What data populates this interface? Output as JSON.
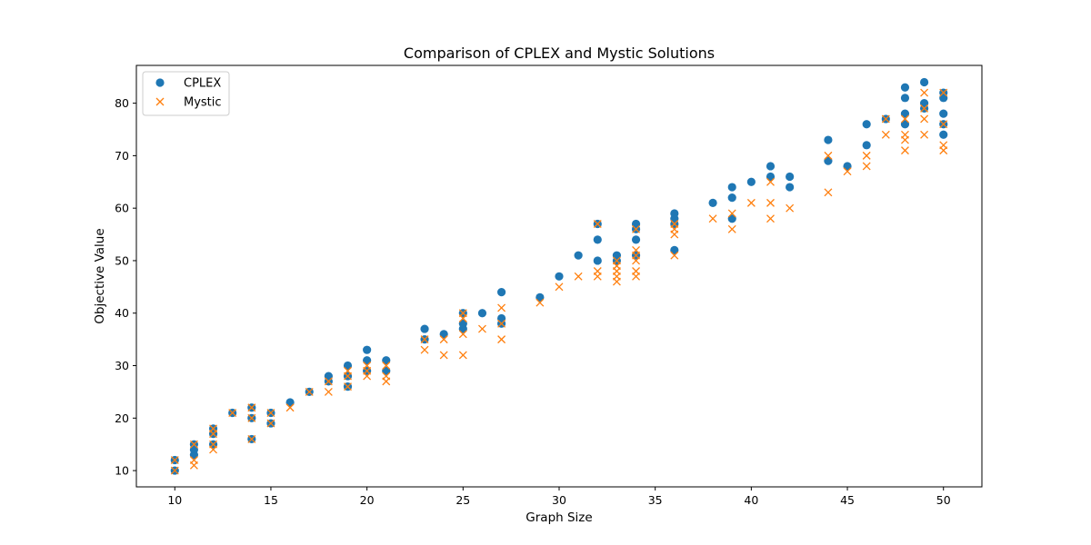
{
  "chart_data": {
    "type": "scatter",
    "title": "Comparison of CPLEX and Mystic Solutions",
    "xlabel": "Graph Size",
    "ylabel": "Objective Value",
    "xlim": [
      8.0,
      52.0
    ],
    "ylim": [
      6.9,
      87.2
    ],
    "xticks": [
      10,
      15,
      20,
      25,
      30,
      35,
      40,
      45,
      50
    ],
    "yticks": [
      10,
      20,
      30,
      40,
      50,
      60,
      70,
      80
    ],
    "grid": false,
    "legend_position": "top-left",
    "series": [
      {
        "name": "CPLEX",
        "marker": "circle",
        "color": "#1f77b4",
        "points": [
          [
            10,
            10
          ],
          [
            10,
            12
          ],
          [
            11,
            13
          ],
          [
            11,
            14
          ],
          [
            11,
            15
          ],
          [
            12,
            15
          ],
          [
            12,
            17
          ],
          [
            12,
            18
          ],
          [
            13,
            21
          ],
          [
            14,
            16
          ],
          [
            14,
            20
          ],
          [
            14,
            22
          ],
          [
            15,
            19
          ],
          [
            15,
            21
          ],
          [
            16,
            23
          ],
          [
            17,
            25
          ],
          [
            18,
            27
          ],
          [
            18,
            28
          ],
          [
            19,
            26
          ],
          [
            19,
            28
          ],
          [
            19,
            30
          ],
          [
            20,
            29
          ],
          [
            20,
            31
          ],
          [
            20,
            33
          ],
          [
            21,
            29
          ],
          [
            21,
            31
          ],
          [
            23,
            35
          ],
          [
            23,
            37
          ],
          [
            24,
            36
          ],
          [
            25,
            37
          ],
          [
            25,
            38
          ],
          [
            25,
            40
          ],
          [
            26,
            40
          ],
          [
            27,
            38
          ],
          [
            27,
            39
          ],
          [
            27,
            44
          ],
          [
            29,
            43
          ],
          [
            30,
            47
          ],
          [
            31,
            51
          ],
          [
            32,
            50
          ],
          [
            32,
            54
          ],
          [
            32,
            57
          ],
          [
            33,
            50
          ],
          [
            33,
            51
          ],
          [
            34,
            51
          ],
          [
            34,
            54
          ],
          [
            34,
            56
          ],
          [
            34,
            57
          ],
          [
            36,
            52
          ],
          [
            36,
            57
          ],
          [
            36,
            58
          ],
          [
            36,
            59
          ],
          [
            38,
            61
          ],
          [
            39,
            58
          ],
          [
            39,
            62
          ],
          [
            39,
            64
          ],
          [
            40,
            65
          ],
          [
            41,
            66
          ],
          [
            41,
            68
          ],
          [
            42,
            64
          ],
          [
            42,
            66
          ],
          [
            44,
            69
          ],
          [
            44,
            73
          ],
          [
            45,
            68
          ],
          [
            46,
            72
          ],
          [
            46,
            76
          ],
          [
            47,
            77
          ],
          [
            48,
            76
          ],
          [
            48,
            78
          ],
          [
            48,
            81
          ],
          [
            48,
            83
          ],
          [
            49,
            79
          ],
          [
            49,
            80
          ],
          [
            49,
            84
          ],
          [
            50,
            74
          ],
          [
            50,
            76
          ],
          [
            50,
            78
          ],
          [
            50,
            81
          ],
          [
            50,
            82
          ]
        ]
      },
      {
        "name": "Mystic",
        "marker": "x",
        "color": "#ff7f0e",
        "points": [
          [
            10,
            10
          ],
          [
            10,
            12
          ],
          [
            11,
            11
          ],
          [
            11,
            12
          ],
          [
            11,
            15
          ],
          [
            12,
            14
          ],
          [
            12,
            15
          ],
          [
            12,
            17
          ],
          [
            12,
            18
          ],
          [
            13,
            21
          ],
          [
            14,
            16
          ],
          [
            14,
            20
          ],
          [
            14,
            22
          ],
          [
            15,
            19
          ],
          [
            15,
            21
          ],
          [
            16,
            22
          ],
          [
            17,
            25
          ],
          [
            18,
            25
          ],
          [
            18,
            27
          ],
          [
            19,
            26
          ],
          [
            19,
            28
          ],
          [
            19,
            29
          ],
          [
            20,
            28
          ],
          [
            20,
            29
          ],
          [
            20,
            30
          ],
          [
            21,
            27
          ],
          [
            21,
            28
          ],
          [
            21,
            30
          ],
          [
            23,
            33
          ],
          [
            23,
            35
          ],
          [
            24,
            32
          ],
          [
            24,
            35
          ],
          [
            25,
            32
          ],
          [
            25,
            36
          ],
          [
            25,
            39
          ],
          [
            25,
            40
          ],
          [
            26,
            37
          ],
          [
            27,
            35
          ],
          [
            27,
            38
          ],
          [
            27,
            41
          ],
          [
            29,
            42
          ],
          [
            30,
            45
          ],
          [
            31,
            47
          ],
          [
            32,
            47
          ],
          [
            32,
            48
          ],
          [
            32,
            57
          ],
          [
            33,
            46
          ],
          [
            33,
            47
          ],
          [
            33,
            48
          ],
          [
            33,
            49
          ],
          [
            33,
            50
          ],
          [
            34,
            47
          ],
          [
            34,
            48
          ],
          [
            34,
            50
          ],
          [
            34,
            51
          ],
          [
            34,
            52
          ],
          [
            34,
            56
          ],
          [
            36,
            51
          ],
          [
            36,
            55
          ],
          [
            36,
            56
          ],
          [
            36,
            57
          ],
          [
            38,
            58
          ],
          [
            39,
            56
          ],
          [
            39,
            59
          ],
          [
            40,
            61
          ],
          [
            41,
            58
          ],
          [
            41,
            61
          ],
          [
            41,
            65
          ],
          [
            42,
            60
          ],
          [
            44,
            63
          ],
          [
            44,
            70
          ],
          [
            45,
            67
          ],
          [
            46,
            68
          ],
          [
            46,
            70
          ],
          [
            47,
            74
          ],
          [
            47,
            77
          ],
          [
            48,
            71
          ],
          [
            48,
            73
          ],
          [
            48,
            74
          ],
          [
            48,
            77
          ],
          [
            49,
            74
          ],
          [
            49,
            77
          ],
          [
            49,
            79
          ],
          [
            49,
            82
          ],
          [
            50,
            71
          ],
          [
            50,
            72
          ],
          [
            50,
            76
          ],
          [
            50,
            82
          ]
        ]
      }
    ]
  }
}
